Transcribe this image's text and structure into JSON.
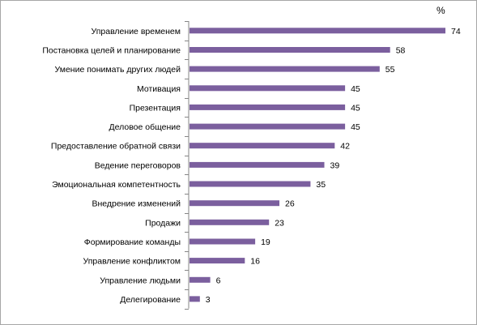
{
  "chart_data": {
    "type": "bar",
    "orientation": "horizontal",
    "unit": "%",
    "categories": [
      "Управление временем",
      "Постановка целей и планирование",
      "Умение понимать других людей",
      "Мотивация",
      "Презентация",
      "Деловое общение",
      "Предоставление обратной связи",
      "Ведение переговоров",
      "Эмоциональная компетентность",
      "Внедрение изменений",
      "Продажи",
      "Формирование команды",
      "Управление конфликтом",
      "Управление людьми",
      "Делегирование"
    ],
    "values": [
      74,
      58,
      55,
      45,
      45,
      45,
      42,
      39,
      35,
      26,
      23,
      19,
      16,
      6,
      3
    ],
    "value_labels": [
      "74",
      "58",
      "55",
      "45",
      "45",
      "45",
      "42",
      "39",
      "35",
      "26",
      "23",
      "19",
      "16",
      "6",
      "3"
    ],
    "xlim": [
      0,
      80
    ],
    "grid": false,
    "bar_color": "#7b5f9e",
    "axis_color": "#868686"
  }
}
